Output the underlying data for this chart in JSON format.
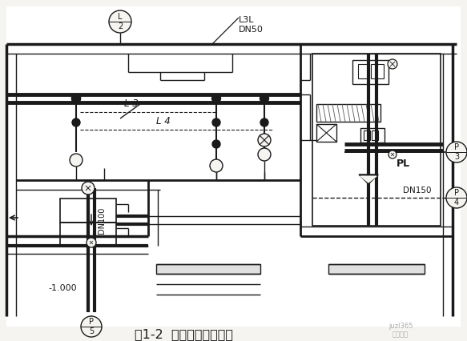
{
  "bg_color": "#f5f4f0",
  "line_color": "#1a1a1a",
  "title": "图1-2  室内给排水平面图",
  "label_L3L": "L3L\nDN50",
  "label_L3": "L 3",
  "label_L4": "L 4",
  "label_DN100": "DN100",
  "label_DN150": "DN150",
  "label_PL": "PL",
  "label_m1000": "-1.000",
  "watermark": "juzl365\n易筑奇材"
}
